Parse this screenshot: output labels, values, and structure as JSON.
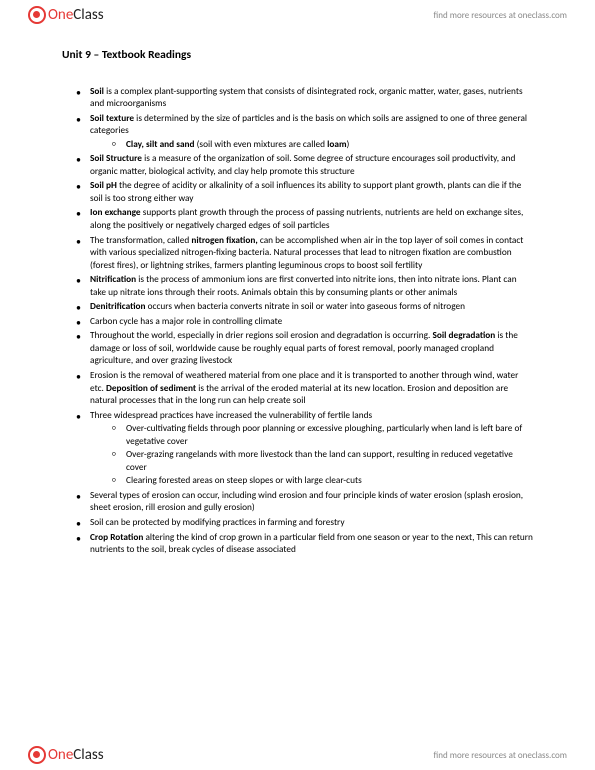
{
  "brand": {
    "part1": "One",
    "part2": "Class"
  },
  "tagline": "find more resources at oneclass.com",
  "title": "Unit 9 – Textbook Readings",
  "bullets": [
    {
      "html": "<b>Soil</b> is a complex plant-supporting system that consists of disintegrated rock, organic matter, water, gases, nutrients and microorganisms"
    },
    {
      "html": "<b>Soil texture</b> is determined by the size of particles and is the basis on which soils are assigned to one of three general categories",
      "sub": [
        {
          "html": "<b>Clay, silt and sand</b> (soil with even mixtures are called <b>loam</b>)"
        }
      ]
    },
    {
      "html": "<b>Soil Structure</b> is a measure of the organization of soil. Some degree of structure encourages soil productivity, and organic matter, biological activity, and clay help promote this structure"
    },
    {
      "html": "<b>Soil pH</b> the degree of acidity or alkalinity of a soil influences its ability to support plant growth, plants can die if the soil is too strong either way"
    },
    {
      "html": "<b>Ion exchange</b> supports plant growth through the process of passing nutrients, nutrients are held on exchange sites, along the positively or negatively charged edges of soil particles"
    },
    {
      "html": "The transformation, called <b>nitrogen fixation,</b> can be accomplished when air in the top layer of soil comes in contact with various specialized nitrogen-fixing bacteria. Natural processes that lead to nitrogen fixation are combustion (forest fires), or lightning strikes, farmers planting leguminous crops to boost soil fertility"
    },
    {
      "html": "<b>Nitrification</b> is the process of ammonium ions are first converted into nitrite ions, then into nitrate ions. Plant can take up nitrate ions through their roots. Animals obtain this by consuming plants or other animals"
    },
    {
      "html": "<b>Denitrification</b> occurs when bacteria converts nitrate in soil or water into gaseous forms of nitrogen"
    },
    {
      "html": "Carbon cycle has a major role in controlling climate"
    },
    {
      "html": "Throughout the world, especially in drier regions soil erosion and degradation is occurring. <b>Soil degradation</b> is the damage or loss of soil, worldwide cause be roughly equal parts of forest removal, poorly managed cropland agriculture, and over grazing livestock"
    },
    {
      "html": "Erosion is the removal of weathered material from one place and it is transported to another through wind, water etc. <b>Deposition of sediment</b> is the arrival of the eroded material at its new location. Erosion and deposition are natural processes that in the long run can help create soil"
    },
    {
      "html": "Three widespread practices have increased the vulnerability of fertile lands",
      "sub": [
        {
          "html": "Over-cultivating fields through poor planning or excessive ploughing, particularly when land is left bare of vegetative cover"
        },
        {
          "html": "Over-grazing rangelands with more livestock than the land can support, resulting in reduced vegetative cover"
        },
        {
          "html": "Clearing forested areas on steep slopes or with large clear-cuts"
        }
      ]
    },
    {
      "html": "Several types of erosion can occur, including wind erosion and four principle kinds of water erosion (splash erosion, sheet erosion, rill erosion and gully erosion)"
    },
    {
      "html": "Soil can be protected by modifying practices in farming and forestry"
    },
    {
      "html": "<b>Crop Rotation</b> altering the kind of crop grown in a particular field  from one season or year to the next, This can return nutrients to the soil, break cycles of disease associated"
    }
  ]
}
